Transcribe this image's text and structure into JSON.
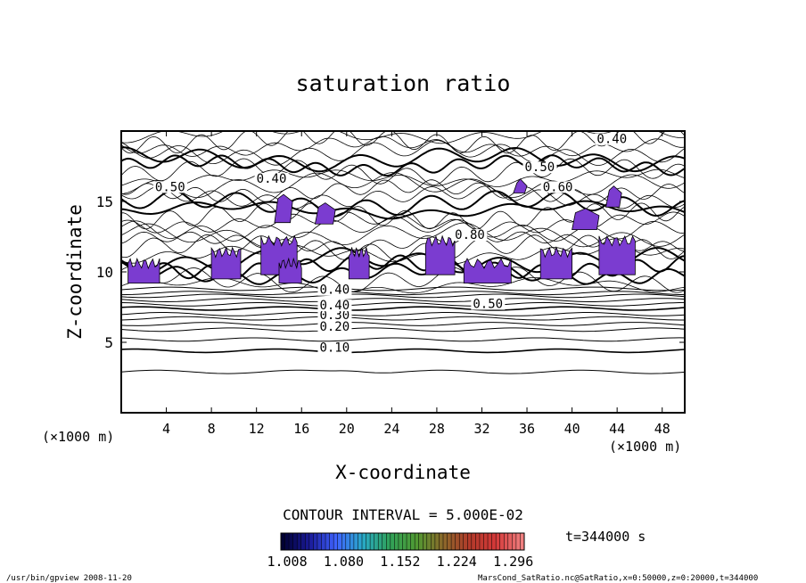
{
  "chart_data": {
    "type": "contour",
    "title": "saturation ratio",
    "xlabel": "X-coordinate",
    "ylabel": "Z-coordinate",
    "x_unit": "(×1000 m)",
    "z_unit": "(×1000 m)",
    "xlim": [
      0,
      50
    ],
    "ylim": [
      0,
      20
    ],
    "x_ticks": [
      "4",
      "8",
      "12",
      "16",
      "20",
      "24",
      "28",
      "32",
      "36",
      "40",
      "44",
      "48"
    ],
    "y_ticks": [
      "5",
      "10",
      "15"
    ],
    "contour_interval_text": "CONTOUR INTERVAL = 5.000E-02",
    "contour_labels": [
      {
        "text": "0.10",
        "x": 17.6,
        "z": 4.4
      },
      {
        "text": "0.20",
        "x": 17.6,
        "z": 5.9
      },
      {
        "text": "0.30",
        "x": 17.6,
        "z": 6.7
      },
      {
        "text": "0.40",
        "x": 17.6,
        "z": 7.4
      },
      {
        "text": "0.40",
        "x": 17.6,
        "z": 8.5
      },
      {
        "text": "0.50",
        "x": 31.2,
        "z": 7.5
      },
      {
        "text": "0.50",
        "x": 3.0,
        "z": 15.8
      },
      {
        "text": "0.40",
        "x": 12.0,
        "z": 16.4
      },
      {
        "text": "0.50",
        "x": 35.8,
        "z": 17.2
      },
      {
        "text": "0.60",
        "x": 37.4,
        "z": 15.8
      },
      {
        "text": "0.40",
        "x": 42.2,
        "z": 19.2
      },
      {
        "text": "0.80",
        "x": 29.6,
        "z": 12.4
      }
    ],
    "supersaturated_regions_x": [
      [
        0.6,
        3.4
      ],
      [
        8.0,
        10.6
      ],
      [
        12.4,
        15.6
      ],
      [
        14.0,
        16.0
      ],
      [
        20.2,
        22.0
      ],
      [
        27.0,
        29.6
      ],
      [
        30.4,
        34.6
      ],
      [
        37.2,
        40.0
      ],
      [
        42.4,
        45.6
      ]
    ],
    "colorbar": {
      "tick_labels": [
        "1.008",
        "1.080",
        "1.152",
        "1.224",
        "1.296"
      ],
      "range": [
        1.0,
        1.31
      ],
      "colors": [
        "#000033",
        "#1a1a99",
        "#3f63ff",
        "#29a9c8",
        "#2fa25a",
        "#4f9a33",
        "#8a6a2a",
        "#b13a2a",
        "#d43838",
        "#f08080"
      ]
    },
    "time_label": "t=344000 s"
  },
  "footer": {
    "left": "/usr/bin/gpview  2008-11-20",
    "right": "MarsCond_SatRatio.nc@SatRatio,x=0:50000,z=0:20000,t=344000"
  }
}
